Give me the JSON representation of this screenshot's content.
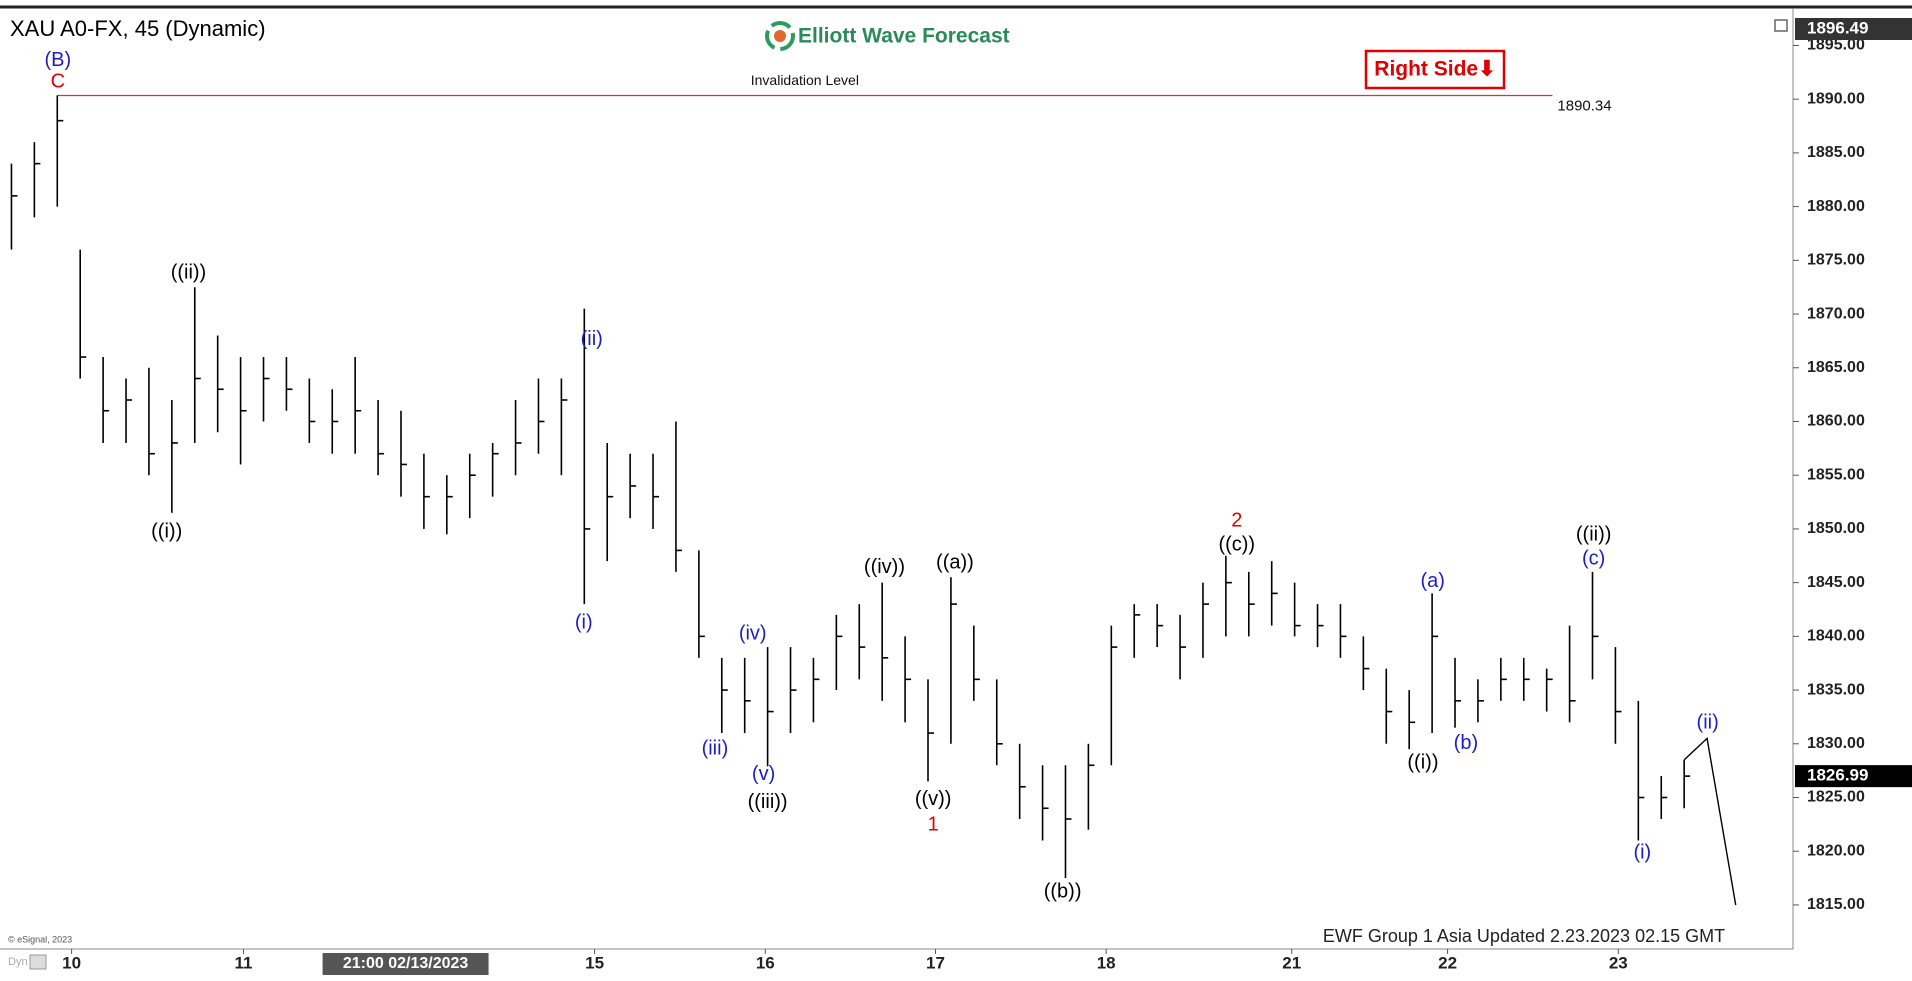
{
  "chart_data": {
    "type": "ohlc",
    "title": "XAU A0-FX, 45 (Dynamic)",
    "logo": "Elliott Wave Forecast",
    "badge": "Right Side⬇",
    "footer": "EWF Group 1 Asia Updated 2.23.2023 02.15 GMT",
    "copyright": "© eSignal, 2023",
    "corner_label": "Dyn",
    "color": "#000000",
    "axis_top_label": 1896.49,
    "crosshair": {
      "x": 69.8,
      "label": "21:00 02/13/2023"
    },
    "invalidation": {
      "label": "Invalidation Level",
      "value": 1890.34,
      "x": [
        9,
        270
      ],
      "color": "#e03030"
    },
    "xlim": [
      -1,
      312
    ],
    "ylim": [
      1810.9,
      1898.3
    ],
    "xticks": [
      {
        "value": 11.5,
        "label": "10"
      },
      {
        "value": 41.5,
        "label": "11"
      },
      {
        "value": 102.8,
        "label": "15"
      },
      {
        "value": 132.6,
        "label": "16"
      },
      {
        "value": 162.3,
        "label": "17"
      },
      {
        "value": 192.1,
        "label": "18"
      },
      {
        "value": 224.5,
        "label": "21"
      },
      {
        "value": 251.7,
        "label": "22"
      },
      {
        "value": 281.5,
        "label": "23"
      }
    ],
    "yticks": [
      {
        "value": 1815,
        "label": "1815.00"
      },
      {
        "value": 1820,
        "label": "1820.00"
      },
      {
        "value": 1825,
        "label": "1825.00"
      },
      {
        "value": 1830,
        "label": "1830.00"
      },
      {
        "value": 1835,
        "label": "1835.00"
      },
      {
        "value": 1840,
        "label": "1840.00"
      },
      {
        "value": 1845,
        "label": "1845.00"
      },
      {
        "value": 1850,
        "label": "1850.00"
      },
      {
        "value": 1855,
        "label": "1855.00"
      },
      {
        "value": 1860,
        "label": "1860.00"
      },
      {
        "value": 1865,
        "label": "1865.00"
      },
      {
        "value": 1870,
        "label": "1870.00"
      },
      {
        "value": 1875,
        "label": "1875.00"
      },
      {
        "value": 1880,
        "label": "1880.00"
      },
      {
        "value": 1885,
        "label": "1885.00"
      },
      {
        "value": 1890,
        "label": "1890.00"
      },
      {
        "value": 1895,
        "label": "1895.00"
      }
    ],
    "x": [
      1,
      5,
      9,
      13,
      17,
      21,
      25,
      29,
      33,
      37,
      41,
      45,
      49,
      53,
      57,
      61,
      65,
      69,
      73,
      77,
      81,
      85,
      89,
      93,
      97,
      101,
      105,
      109,
      113,
      117,
      121,
      125,
      129,
      133,
      137,
      141,
      145,
      149,
      153,
      157,
      161,
      165,
      169,
      173,
      177,
      181,
      185,
      189,
      193,
      197,
      201,
      205,
      209,
      213,
      217,
      221,
      225,
      229,
      233,
      237,
      241,
      245,
      249,
      253,
      257,
      261,
      265,
      269,
      273,
      277,
      281,
      285,
      289,
      293
    ],
    "high": [
      1884,
      1886,
      1890.34,
      1876,
      1866,
      1864,
      1865,
      1862,
      1872.5,
      1868,
      1866,
      1866,
      1866,
      1864,
      1863,
      1866,
      1862,
      1861,
      1857,
      1855,
      1857,
      1858,
      1862,
      1864,
      1864,
      1870.5,
      1858,
      1857,
      1857,
      1860,
      1848,
      1838,
      1838,
      1839,
      1839,
      1838,
      1842,
      1843,
      1845,
      1840,
      1836,
      1845.5,
      1841,
      1836,
      1830,
      1828,
      1828,
      1830,
      1841,
      1843,
      1843,
      1842,
      1845,
      1847.5,
      1846,
      1847,
      1845,
      1843,
      1843,
      1840,
      1837,
      1835,
      1844,
      1838,
      1836,
      1838,
      1838,
      1837,
      1841,
      1846,
      1839,
      1834,
      1827,
      1828.5
    ],
    "low": [
      1876,
      1879,
      1880,
      1864,
      1858,
      1858,
      1855,
      1851.5,
      1858,
      1859,
      1856,
      1860,
      1861,
      1858,
      1857,
      1857,
      1855,
      1853,
      1850,
      1849.5,
      1851,
      1853,
      1855,
      1857,
      1855,
      1843,
      1847,
      1851,
      1850,
      1846,
      1838,
      1831,
      1831,
      1827.9,
      1831,
      1832,
      1835,
      1836,
      1834,
      1832,
      1826.5,
      1830,
      1834,
      1828,
      1823,
      1821,
      1817.5,
      1822,
      1828,
      1838,
      1839,
      1836,
      1838,
      1840,
      1840,
      1841,
      1840,
      1839,
      1838,
      1835,
      1830,
      1829.5,
      1831,
      1831.5,
      1832,
      1834,
      1834,
      1833,
      1832,
      1836,
      1830,
      1821,
      1823,
      1824
    ],
    "close": [
      1881,
      1884,
      1888,
      1866,
      1861,
      1862,
      1857,
      1858,
      1864,
      1863,
      1861,
      1864,
      1863,
      1860,
      1860,
      1861,
      1857,
      1856,
      1853,
      1853,
      1855,
      1857,
      1858,
      1860,
      1862,
      1850,
      1853,
      1854,
      1853,
      1848,
      1840,
      1835,
      1834,
      1833,
      1835,
      1836,
      1840,
      1839,
      1838,
      1836,
      1831,
      1843,
      1836,
      1830,
      1826,
      1824,
      1823,
      1828,
      1839,
      1842,
      1841,
      1839,
      1843,
      1845,
      1843,
      1844,
      1841,
      1841,
      1840,
      1837,
      1833,
      1832,
      1840,
      1834,
      1834,
      1836,
      1836,
      1836,
      1834,
      1840,
      1833,
      1825,
      1825,
      1826.99
    ],
    "projection": {
      "x": [
        293,
        297,
        302
      ],
      "values": [
        1828.5,
        1830.5,
        1815
      ],
      "color": "#000000"
    },
    "annotations": [
      {
        "text": "(B)",
        "x": 9.1,
        "y": 1893.6,
        "color": "#1c1cc8"
      },
      {
        "text": "C",
        "x": 9.1,
        "y": 1891.6,
        "color": "#e00000"
      },
      {
        "text": "((i))",
        "x": 28.1,
        "y": 1849.7,
        "color": "#000000"
      },
      {
        "text": "((ii))",
        "x": 31.9,
        "y": 1873.8,
        "color": "#000000"
      },
      {
        "text": "(ii)",
        "x": 102.3,
        "y": 1867.6,
        "color": "#1c1cc8"
      },
      {
        "text": "(i)",
        "x": 100.9,
        "y": 1841.2,
        "color": "#1c1cc8"
      },
      {
        "text": "(iii)",
        "x": 123.8,
        "y": 1829.5,
        "color": "#1c1cc8"
      },
      {
        "text": "(iv)",
        "x": 130.4,
        "y": 1840.2,
        "color": "#1c1cc8"
      },
      {
        "text": "(v)",
        "x": 132.3,
        "y": 1827.1,
        "color": "#1c1cc8"
      },
      {
        "text": "((iii))",
        "x": 133,
        "y": 1824.5,
        "color": "#000000"
      },
      {
        "text": "((iv))",
        "x": 153.4,
        "y": 1846.4,
        "color": "#000000"
      },
      {
        "text": "((a))",
        "x": 165.7,
        "y": 1846.8,
        "color": "#000000"
      },
      {
        "text": "((v))",
        "x": 161.9,
        "y": 1824.8,
        "color": "#000000"
      },
      {
        "text": "1",
        "x": 161.9,
        "y": 1822.4,
        "color": "#e00000"
      },
      {
        "text": "((b))",
        "x": 184.5,
        "y": 1816.2,
        "color": "#000000"
      },
      {
        "text": "2",
        "x": 214.9,
        "y": 1850.7,
        "color": "#e00000"
      },
      {
        "text": "((c))",
        "x": 214.9,
        "y": 1848.5,
        "color": "#000000"
      },
      {
        "text": "(a)",
        "x": 249.1,
        "y": 1845.1,
        "color": "#1c1cc8"
      },
      {
        "text": "((i))",
        "x": 247.4,
        "y": 1828.2,
        "color": "#000000"
      },
      {
        "text": "(b)",
        "x": 254.9,
        "y": 1830.0,
        "color": "#1c1cc8"
      },
      {
        "text": "((ii))",
        "x": 277.2,
        "y": 1849.4,
        "color": "#000000"
      },
      {
        "text": "(c)",
        "x": 277.2,
        "y": 1847.2,
        "color": "#1c1cc8"
      },
      {
        "text": "(i)",
        "x": 285.7,
        "y": 1819.8,
        "color": "#1c1cc8"
      },
      {
        "text": "(ii)",
        "x": 297.1,
        "y": 1831.9,
        "color": "#1c1cc8"
      }
    ]
  }
}
